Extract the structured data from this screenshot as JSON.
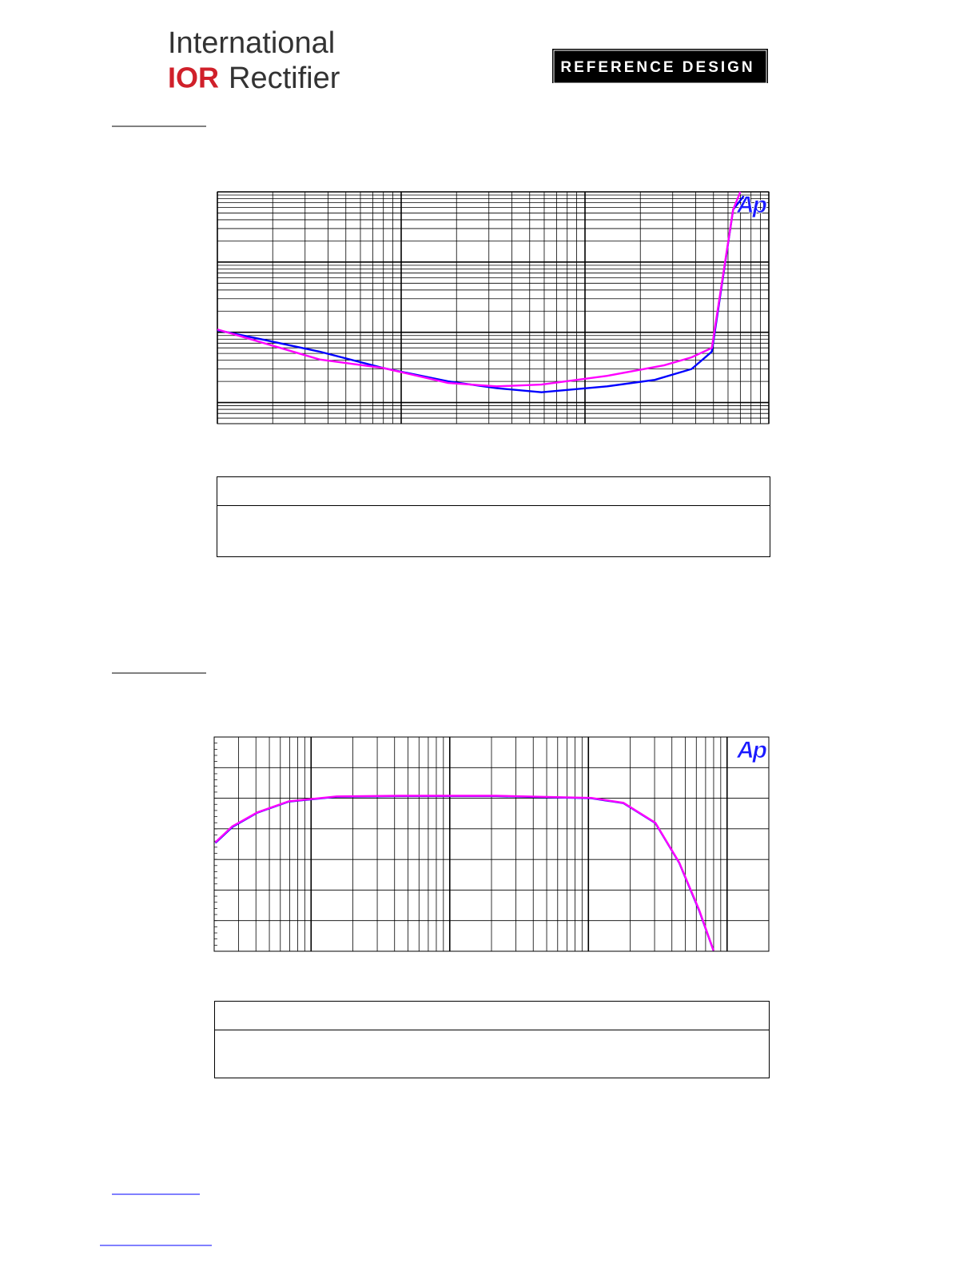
{
  "header": {
    "logo_line1": "International",
    "logo_brand": "IOR",
    "logo_line2": "Rectifier",
    "badge": "REFERENCE DESIGN"
  },
  "chart_data": [
    {
      "type": "line",
      "logo": "Ap",
      "log_x": true,
      "log_y": true,
      "grid": true,
      "xlim": [
        0.01,
        10
      ],
      "ylim": [
        0.005,
        10
      ],
      "xticks": [
        0.01,
        0.02,
        0.03,
        0.04,
        0.05,
        0.06,
        0.07,
        0.08,
        0.09,
        0.1,
        0.2,
        0.3,
        0.4,
        0.5,
        0.6,
        0.7,
        0.8,
        0.9,
        1,
        2,
        3,
        4,
        5,
        6,
        7,
        8,
        9,
        10
      ],
      "yticks": [
        0.005,
        0.006,
        0.007,
        0.008,
        0.009,
        0.01,
        0.02,
        0.03,
        0.04,
        0.05,
        0.06,
        0.07,
        0.08,
        0.09,
        0.1,
        0.2,
        0.3,
        0.4,
        0.5,
        0.6,
        0.7,
        0.8,
        0.9,
        1,
        2,
        3,
        4,
        5,
        6,
        7,
        8,
        9,
        10
      ],
      "series": [
        {
          "color": "#0000ff",
          "x": [
            0.01,
            0.018,
            0.036,
            0.08,
            0.18,
            0.33,
            0.58,
            1.32,
            2.4,
            3.8,
            4.9,
            6.4,
            7.3
          ],
          "values": [
            0.107,
            0.078,
            0.053,
            0.031,
            0.02,
            0.016,
            0.014,
            0.017,
            0.021,
            0.03,
            0.053,
            5.6,
            8.7
          ]
        },
        {
          "color": "#ff00ff",
          "x": [
            0.01,
            0.036,
            0.08,
            0.18,
            0.33,
            0.58,
            1.32,
            2.7,
            3.8,
            4.9,
            6.4,
            7
          ],
          "values": [
            0.11,
            0.041,
            0.031,
            0.019,
            0.017,
            0.018,
            0.024,
            0.034,
            0.044,
            0.06,
            5.6,
            10
          ]
        }
      ]
    },
    {
      "type": "line",
      "logo": "Ap",
      "log_x": true,
      "log_y": false,
      "grid": true,
      "xlim": [
        20,
        200000
      ],
      "ylim": [
        -5,
        2
      ],
      "xticks": [
        20,
        30,
        40,
        50,
        60,
        70,
        80,
        90,
        100,
        200,
        300,
        400,
        500,
        600,
        700,
        800,
        900,
        1000,
        2000,
        3000,
        4000,
        5000,
        6000,
        7000,
        8000,
        9000,
        10000,
        20000,
        30000,
        40000,
        50000,
        60000,
        70000,
        80000,
        90000,
        100000,
        200000
      ],
      "yticks": [
        -5,
        -4,
        -3,
        -2,
        -1,
        0,
        1,
        2
      ],
      "series": [
        {
          "color": "#0000ff",
          "x": [
            20.4,
            27,
            41,
            69,
            153,
            440,
            2150,
            10500,
            17900,
            30400,
            45200,
            63000,
            79800
          ],
          "values": [
            -1.46,
            -0.94,
            -0.47,
            -0.11,
            0.05,
            0.07,
            0.07,
            0,
            -0.16,
            -0.81,
            -2.11,
            -3.68,
            -4.98
          ]
        },
        {
          "color": "#ff00ff",
          "x": [
            20.4,
            27,
            41,
            69,
            153,
            440,
            2150,
            10500,
            17900,
            30400,
            45200,
            63000,
            79800
          ],
          "values": [
            -1.44,
            -0.92,
            -0.46,
            -0.1,
            0.06,
            0.08,
            0.08,
            0.01,
            -0.15,
            -0.8,
            -2.1,
            -3.66,
            -4.98
          ]
        }
      ]
    }
  ]
}
